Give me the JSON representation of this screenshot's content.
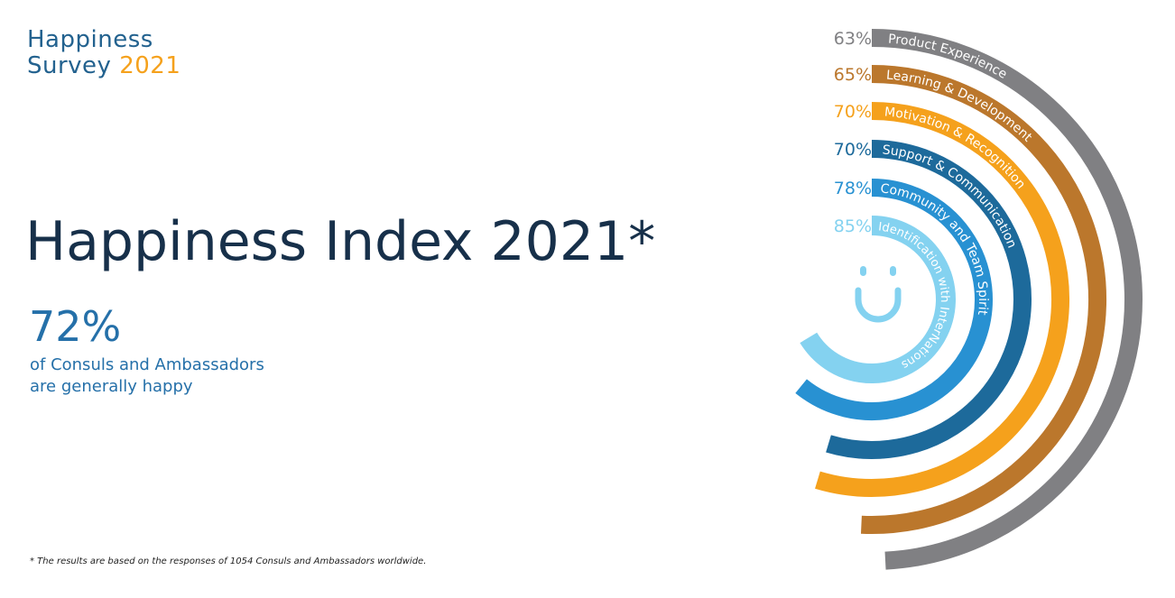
{
  "logo": {
    "line1": "Happiness",
    "line2_word": "Survey",
    "line2_year": "2021"
  },
  "title": "Happiness Index 2021*",
  "headline": {
    "value": "72%",
    "line1": "of Consuls and Ambassadors",
    "line2": "are generally happy"
  },
  "footnote": "* The results are based on the responses of 1054 Consuls and Ambassadors worldwide.",
  "colors": {
    "gray": "#808083",
    "brown": "#bb772c",
    "orange": "#f5a11c",
    "navy": "#1d6a9b",
    "blue": "#2891d2",
    "light_blue": "#84d2f0",
    "text_dark": "#17304a",
    "text_blue": "#2570a9"
  },
  "smiley": {
    "icon": "smiley-face-icon",
    "color": "#84d2f0"
  },
  "chart_data": {
    "type": "radial-bar",
    "unit": "%",
    "categories": [
      "Product Experience",
      "Learning & Development",
      "Motivation & Recognition",
      "Support & Communication",
      "Community and Team Spirit",
      "Identification with InterNations"
    ],
    "values": [
      63,
      65,
      70,
      70,
      78,
      85
    ],
    "value_labels": [
      "63%",
      "65%",
      "70%",
      "70%",
      "78%",
      "85%"
    ],
    "colors": [
      "#808083",
      "#bb772c",
      "#f5a11c",
      "#1d6a9b",
      "#2891d2",
      "#84d2f0"
    ],
    "label_colors": [
      "#808083",
      "#bb772c",
      "#f5a11c",
      "#1d6a9b",
      "#2891d2",
      "#84d2f0"
    ]
  }
}
